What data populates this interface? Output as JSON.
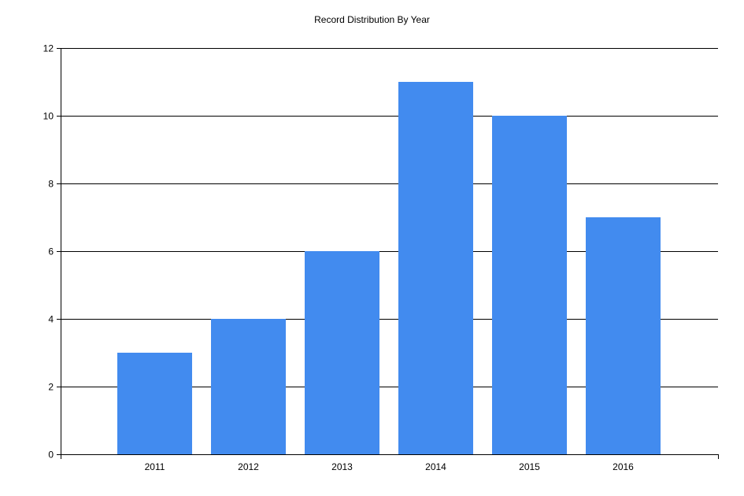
{
  "chart_data": {
    "type": "bar",
    "title": "Record Distribution By Year",
    "xlabel": "",
    "ylabel": "",
    "categories": [
      "2011",
      "2012",
      "2013",
      "2014",
      "2015",
      "2016"
    ],
    "values": [
      3,
      4,
      6,
      11,
      10,
      7
    ],
    "ylim": [
      0,
      12
    ],
    "yticks": [
      0,
      2,
      4,
      6,
      8,
      10,
      12
    ],
    "grid": true,
    "legend": "none",
    "colors": {
      "bar": "#428bef",
      "grid": "#000000",
      "axis": "#000000"
    }
  }
}
